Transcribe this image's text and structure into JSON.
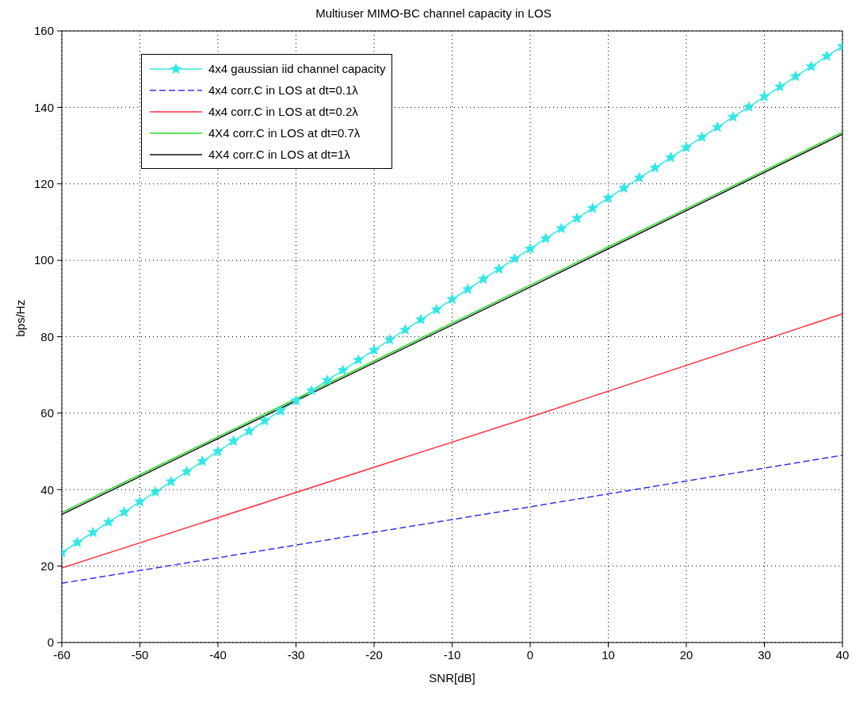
{
  "chart_data": {
    "type": "line",
    "title": "Multiuser MIMO-BC channel capacity in LOS",
    "xlabel": "SNR[dB]",
    "ylabel": "bps/Hz",
    "xlim": [
      -60,
      40
    ],
    "xticks": [
      -60,
      -50,
      -40,
      -30,
      -20,
      -10,
      0,
      10,
      20,
      30,
      40
    ],
    "ylim": [
      0,
      160
    ],
    "yticks": [
      0,
      20,
      40,
      60,
      80,
      100,
      120,
      140,
      160
    ],
    "grid": true,
    "legend": "top left",
    "series": [
      {
        "name": "4x4 gaussian iid channel capacity",
        "color": "#33e6e6",
        "marker": "star",
        "line_style": "solid",
        "x": [
          -60,
          -58,
          -56,
          -54,
          -52,
          -50,
          -48,
          -46,
          -44,
          -42,
          -40,
          -38,
          -36,
          -34,
          -32,
          -30,
          -28,
          -26,
          -24,
          -22,
          -20,
          -18,
          -16,
          -14,
          -12,
          -10,
          -8,
          -6,
          -4,
          -2,
          0,
          2,
          4,
          6,
          8,
          10,
          12,
          14,
          16,
          18,
          20,
          22,
          24,
          26,
          28,
          30,
          32,
          34,
          36,
          38,
          40
        ],
        "values": [
          23.5,
          26.2,
          28.8,
          31.5,
          34.1,
          36.8,
          39.4,
          42.1,
          44.7,
          47.4,
          50,
          52.7,
          55.3,
          58,
          60.6,
          63.3,
          65.9,
          68.6,
          71.2,
          73.9,
          76.5,
          79.2,
          81.8,
          84.5,
          87.1,
          89.8,
          92.4,
          95.1,
          97.7,
          100.4,
          103,
          105.7,
          108.3,
          111,
          113.6,
          116.3,
          118.9,
          121.6,
          124.2,
          126.9,
          129.5,
          132.2,
          134.8,
          137.5,
          140.1,
          142.8,
          145.4,
          148.1,
          150.7,
          153.4,
          156
        ]
      },
      {
        "name": "4x4 corr.C in LOS at dt=0.1λ",
        "color": "#3333ee",
        "marker": "none",
        "line_style": "dashed",
        "x": [
          -60,
          0,
          40
        ],
        "values": [
          15.5,
          35.5,
          49
        ]
      },
      {
        "name": "4x4 corr.C in LOS at dt=0.2λ",
        "color": "#ff3344",
        "marker": "none",
        "line_style": "solid",
        "x": [
          -60,
          0,
          40
        ],
        "values": [
          19.5,
          59,
          86
        ]
      },
      {
        "name": "4X4 corr.C in LOS at dt=0.7λ",
        "color": "#22dd22",
        "marker": "none",
        "line_style": "solid",
        "x": [
          -60,
          0,
          40
        ],
        "values": [
          34,
          93.5,
          133.5
        ]
      },
      {
        "name": "4X4 corr.C in LOS at dt=1λ",
        "color": "#111111",
        "marker": "none",
        "line_style": "solid",
        "x": [
          -60,
          0,
          40
        ],
        "values": [
          33.5,
          93,
          133
        ]
      }
    ]
  }
}
